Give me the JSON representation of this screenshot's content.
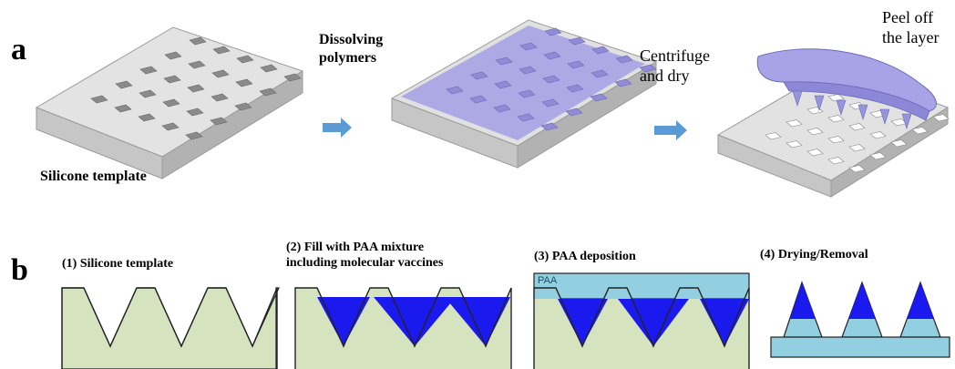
{
  "panel_a": {
    "letter": "a",
    "template_label": "Silicone template",
    "step1_label_line1": "Dissolving",
    "step1_label_line2": "polymers",
    "step2_label_line1": "Centrifuge",
    "step2_label_line2": "and dry",
    "step3_label_line1": "Peel off",
    "step3_label_line2": "the layer"
  },
  "panel_b": {
    "letter": "b",
    "steps": [
      {
        "label_line1": "(1) Silicone template",
        "label_line2": ""
      },
      {
        "label_line1": "(2) Fill with PAA mixture",
        "label_line2": "including molecular vaccines"
      },
      {
        "label_line1": "(3) PAA deposition",
        "label_line2": ""
      },
      {
        "label_line1": "(4) Drying/Removal",
        "label_line2": ""
      }
    ],
    "paa_tag": "PAA"
  },
  "colors": {
    "template_green": "#d5e3bf",
    "vaccine_blue": "#1a1aee",
    "paa_lightblue": "#92cfe0",
    "arrow_blue": "#5b9bd5",
    "silicone_gray": "#d4d4d4",
    "polymer_purple": "#a7a3e6"
  }
}
